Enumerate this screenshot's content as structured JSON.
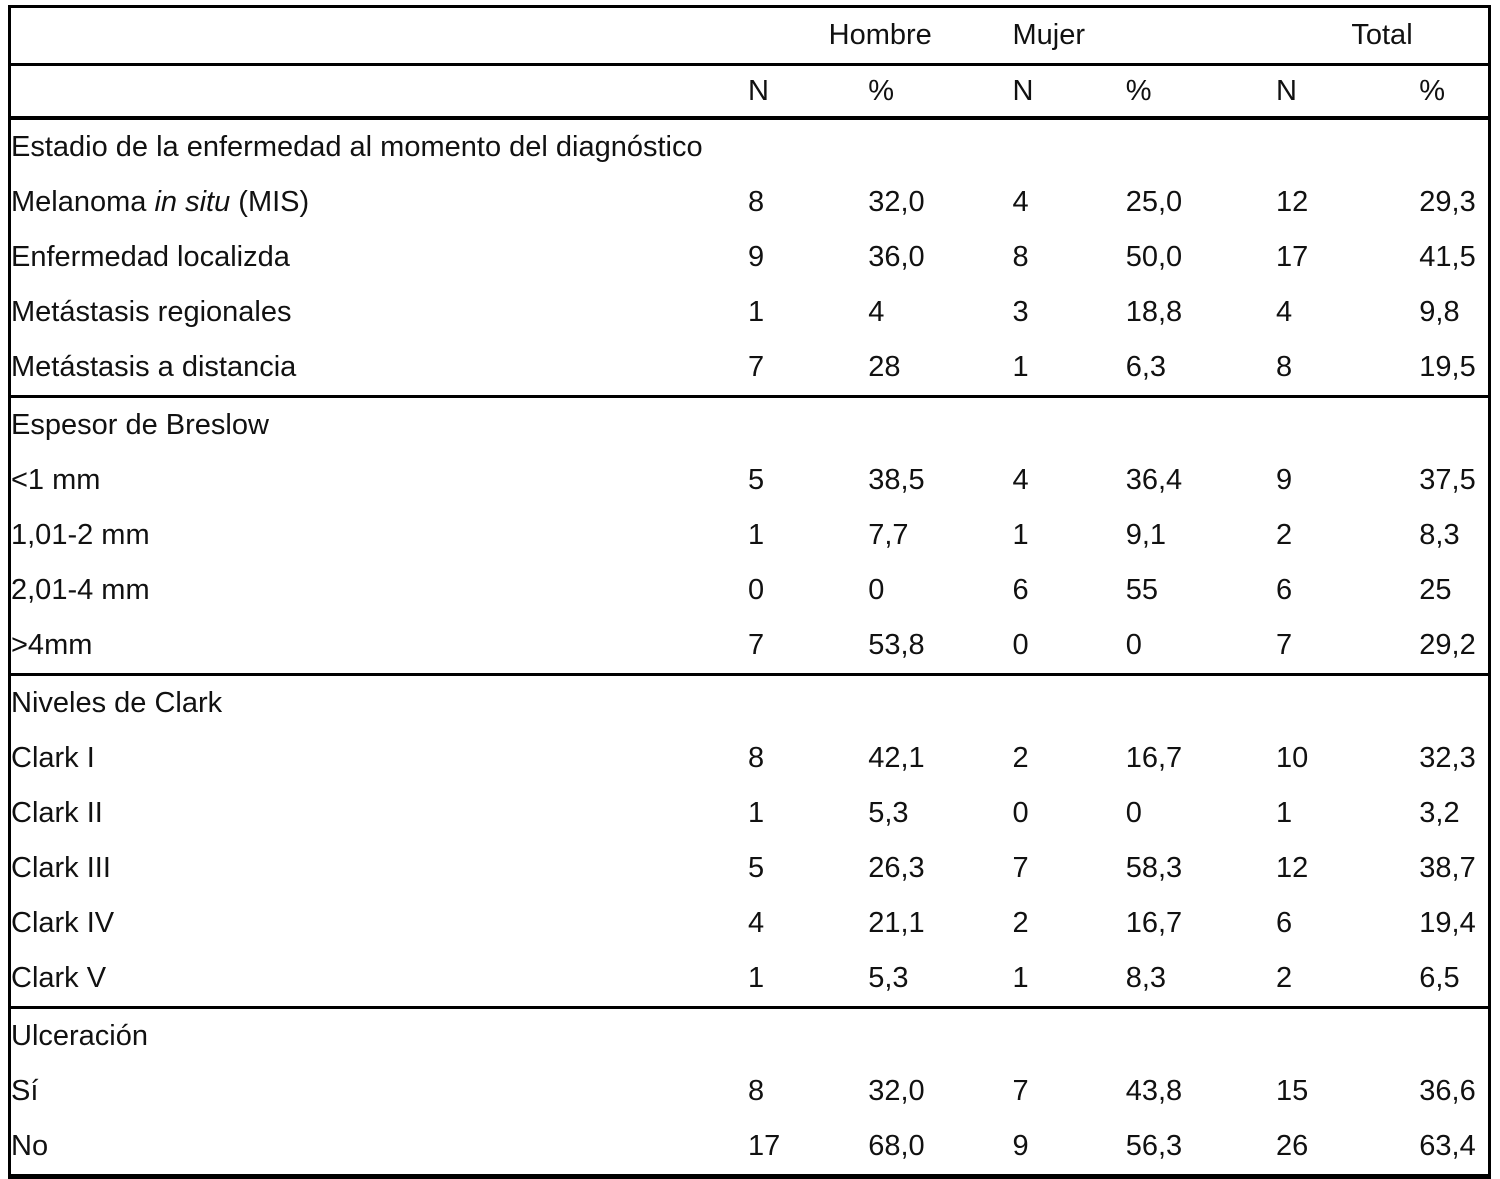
{
  "table": {
    "col_headers": {
      "hombre": "Hombre",
      "mujer": "Mujer",
      "total": "Total",
      "n": "N",
      "pct": "%"
    },
    "sections": [
      {
        "title": "Estadio de la enfermedad al momento del diagnóstico",
        "rows": [
          {
            "label_parts": {
              "pre": "Melanoma ",
              "italic": "in situ",
              "post": " (MIS)"
            },
            "values": [
              "8",
              "32,0",
              "4",
              "25,0",
              "12",
              "29,3"
            ]
          },
          {
            "label": "Enfermedad localizda",
            "values": [
              "9",
              "36,0",
              "8",
              "50,0",
              "17",
              "41,5"
            ]
          },
          {
            "label": "Metástasis regionales",
            "values": [
              "1",
              "4",
              "3",
              "18,8",
              "4",
              "9,8"
            ]
          },
          {
            "label": "Metástasis a distancia",
            "values": [
              "7",
              "28",
              "1",
              "6,3",
              "8",
              "19,5"
            ]
          }
        ]
      },
      {
        "title": "Espesor de Breslow",
        "rows": [
          {
            "label": "<1 mm",
            "values": [
              "5",
              "38,5",
              "4",
              "36,4",
              "9",
              "37,5"
            ]
          },
          {
            "label": "1,01-2 mm",
            "values": [
              "1",
              "7,7",
              "1",
              "9,1",
              "2",
              "8,3"
            ]
          },
          {
            "label": "2,01-4 mm",
            "values": [
              "0",
              "0",
              "6",
              "55",
              "6",
              "25"
            ]
          },
          {
            "label": ">4mm",
            "values": [
              "7",
              "53,8",
              "0",
              "0",
              "7",
              "29,2"
            ]
          }
        ]
      },
      {
        "title": "Niveles de Clark",
        "rows": [
          {
            "label": "Clark I",
            "values": [
              "8",
              "42,1",
              "2",
              "16,7",
              "10",
              "32,3"
            ]
          },
          {
            "label": "Clark II",
            "values": [
              "1",
              "5,3",
              "0",
              "0",
              "1",
              "3,2"
            ]
          },
          {
            "label": "Clark III",
            "values": [
              "5",
              "26,3",
              "7",
              "58,3",
              "12",
              "38,7"
            ]
          },
          {
            "label": "Clark IV",
            "values": [
              "4",
              "21,1",
              "2",
              "16,7",
              "6",
              "19,4"
            ]
          },
          {
            "label": "Clark V",
            "values": [
              "1",
              "5,3",
              "1",
              "8,3",
              "2",
              "6,5"
            ]
          }
        ]
      },
      {
        "title": "Ulceración",
        "rows": [
          {
            "label": "Sí",
            "values": [
              "8",
              "32,0",
              "7",
              "43,8",
              "15",
              "36,6"
            ]
          },
          {
            "label": "No",
            "values": [
              "17",
              "68,0",
              "9",
              "56,3",
              "26",
              "63,4"
            ]
          }
        ]
      }
    ]
  }
}
